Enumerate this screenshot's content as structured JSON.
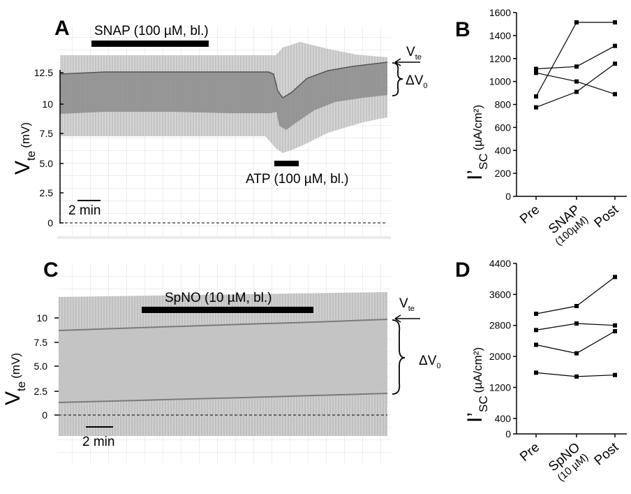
{
  "colors": {
    "trace_dark": "#777777",
    "trace_light": "#cfcfcf",
    "grid": "#d6d6d6",
    "text": "#000000"
  },
  "panel_A": {
    "letter": "A",
    "drug_bar_label": "SNAP (100 µM, bl.)",
    "atp_bar_label": "ATP (100 µM, bl.)",
    "yaxis_main": "V",
    "yaxis_sub": "te",
    "yaxis_unit": "(mV)",
    "yticks": [
      "12.5",
      "10",
      "7.5",
      "5.0",
      "2.5",
      "0"
    ],
    "scale_label": "2 min",
    "vte_label": "V",
    "vte_sub": "te",
    "dv_label": "ΔV",
    "dv_sub": "0"
  },
  "panel_C": {
    "letter": "C",
    "drug_bar_label": "SpNO (10 µM, bl.)",
    "yaxis_main": "V",
    "yaxis_sub": "te",
    "yaxis_unit": "(mV)",
    "yticks": [
      "10",
      "7.5",
      "5.0",
      "2.5",
      "0"
    ],
    "scale_label": "2 min",
    "vte_label": "V",
    "vte_sub": "te",
    "dv_label": "ΔV",
    "dv_sub": "0"
  },
  "panel_B": {
    "letter": "B",
    "ylabel_main": "I’",
    "ylabel_sub": "SC",
    "ylabel_unit": "(µA/cm²)"
  },
  "panel_D": {
    "letter": "D",
    "ylabel_main": "I’",
    "ylabel_sub": "SC",
    "ylabel_unit": "(µA/cm²)"
  },
  "chart_data": [
    {
      "type": "line",
      "panel": "B",
      "categories": [
        "Pre",
        "SNAP\n(100µM)",
        "Post"
      ],
      "yticks": [
        "0",
        "200",
        "400",
        "600",
        "800",
        "1000",
        "1200",
        "1400",
        "1600"
      ],
      "ylim": [
        0,
        1600
      ],
      "series": [
        {
          "values": [
            870,
            1515,
            1515
          ]
        },
        {
          "values": [
            775,
            910,
            1155
          ]
        },
        {
          "values": [
            1110,
            1130,
            1310
          ]
        },
        {
          "values": [
            1075,
            1000,
            890
          ]
        }
      ]
    },
    {
      "type": "line",
      "panel": "D",
      "categories": [
        "Pre",
        "SpNO\n(10 µM)",
        "Post"
      ],
      "yticks": [
        "0",
        "400",
        "1200",
        "2000",
        "2800",
        "3600",
        "4400"
      ],
      "ylim": [
        0,
        4400
      ],
      "series": [
        {
          "values": [
            3100,
            3300,
            4050
          ]
        },
        {
          "values": [
            2680,
            2850,
            2800
          ]
        },
        {
          "values": [
            2300,
            2080,
            2650
          ]
        },
        {
          "values": [
            1580,
            1480,
            1520
          ]
        }
      ]
    }
  ]
}
